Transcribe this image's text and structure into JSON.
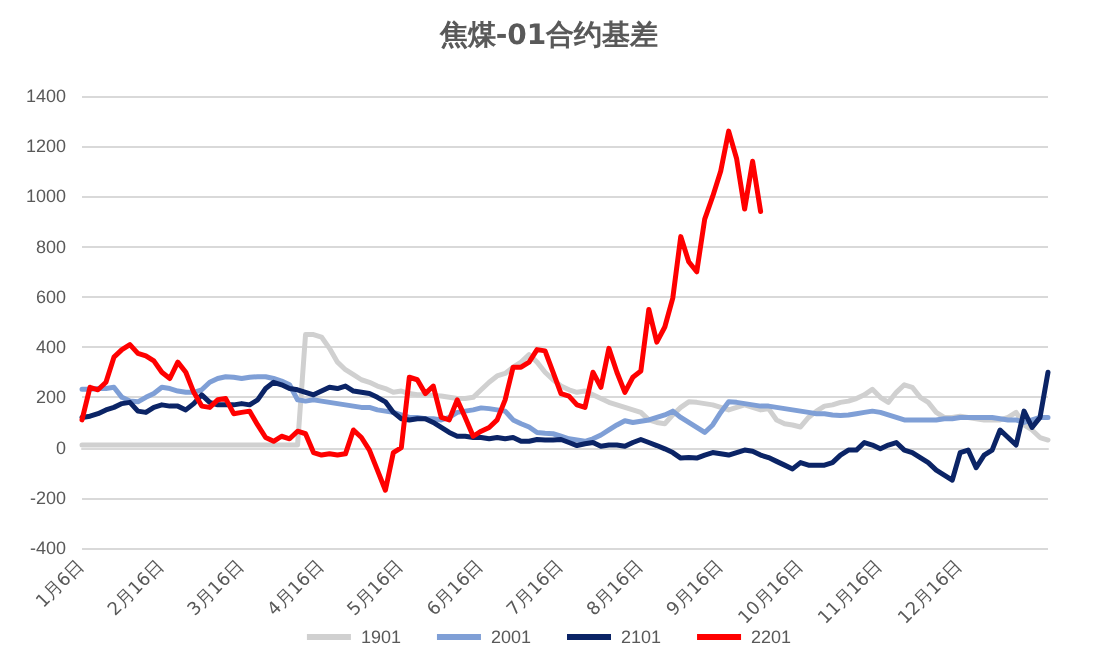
{
  "chart_data": {
    "type": "line",
    "title": "焦煤-01合约基差",
    "categories": [
      "1月6日",
      null,
      null,
      null,
      null,
      null,
      null,
      null,
      null,
      null,
      "2月16日",
      null,
      null,
      null,
      null,
      null,
      null,
      null,
      null,
      null,
      "3月16日",
      null,
      null,
      null,
      null,
      null,
      null,
      null,
      null,
      null,
      "4月16日",
      null,
      null,
      null,
      null,
      null,
      null,
      null,
      null,
      null,
      "5月16日",
      null,
      null,
      null,
      null,
      null,
      null,
      null,
      null,
      null,
      "6月16日",
      null,
      null,
      null,
      null,
      null,
      null,
      null,
      null,
      null,
      "7月16日",
      null,
      null,
      null,
      null,
      null,
      null,
      null,
      null,
      null,
      "8月16日",
      null,
      null,
      null,
      null,
      null,
      null,
      null,
      null,
      null,
      "9月16日",
      null,
      null,
      null,
      null,
      null,
      null,
      null,
      null,
      null,
      "10月16日",
      null,
      null,
      null,
      null,
      null,
      null,
      null,
      null,
      null,
      "11月16日",
      null,
      null,
      null,
      null,
      null,
      null,
      null,
      null,
      null,
      "12月16日",
      null,
      null,
      null,
      null,
      null,
      null,
      null,
      null,
      null,
      null,
      null
    ],
    "series": [
      {
        "name": "1901",
        "color": "#d0d0d0",
        "values": [
          10,
          10,
          10,
          10,
          10,
          10,
          10,
          10,
          10,
          10,
          10,
          10,
          10,
          10,
          10,
          10,
          10,
          10,
          10,
          10,
          10,
          10,
          10,
          10,
          10,
          10,
          10,
          10,
          450,
          450,
          440,
          395,
          340,
          310,
          290,
          270,
          260,
          245,
          235,
          220,
          225,
          215,
          210,
          210,
          207,
          205,
          200,
          195,
          195,
          200,
          230,
          260,
          285,
          295,
          320,
          340,
          370,
          340,
          300,
          270,
          245,
          230,
          220,
          225,
          210,
          195,
          180,
          170,
          160,
          150,
          140,
          110,
          100,
          95,
          130,
          160,
          182,
          180,
          175,
          170,
          160,
          150,
          160,
          170,
          160,
          150,
          155,
          110,
          95,
          90,
          82,
          120,
          145,
          165,
          170,
          180,
          185,
          195,
          210,
          232,
          200,
          180,
          220,
          250,
          240,
          200,
          180,
          140,
          120,
          120,
          125,
          120,
          115,
          110,
          110,
          110,
          120,
          140,
          90,
          70,
          40,
          30
        ]
      },
      {
        "name": "2001",
        "color": "#7f9fd6",
        "values": [
          232,
          232,
          235,
          235,
          240,
          200,
          185,
          182,
          200,
          215,
          240,
          235,
          225,
          220,
          220,
          230,
          260,
          275,
          282,
          280,
          275,
          280,
          282,
          282,
          275,
          265,
          250,
          190,
          185,
          190,
          185,
          180,
          175,
          170,
          165,
          160,
          160,
          150,
          145,
          140,
          130,
          120,
          120,
          115,
          115,
          110,
          120,
          140,
          145,
          150,
          158,
          155,
          150,
          145,
          110,
          95,
          82,
          60,
          57,
          55,
          45,
          35,
          30,
          25,
          35,
          50,
          70,
          90,
          107,
          100,
          105,
          110,
          120,
          130,
          145,
          120,
          100,
          80,
          60,
          90,
          140,
          182,
          180,
          175,
          170,
          165,
          165,
          160,
          155,
          150,
          145,
          140,
          135,
          135,
          130,
          128,
          130,
          135,
          140,
          145,
          140,
          130,
          120,
          110,
          110,
          110,
          110,
          110,
          115,
          115,
          120,
          120,
          120,
          120,
          120,
          115,
          110,
          110,
          100,
          110,
          120,
          120
        ]
      },
      {
        "name": "2101",
        "color": "#0b2466",
        "values": [
          120,
          125,
          135,
          150,
          160,
          175,
          180,
          145,
          140,
          160,
          170,
          165,
          165,
          150,
          175,
          210,
          180,
          170,
          170,
          170,
          175,
          170,
          190,
          235,
          260,
          250,
          235,
          230,
          220,
          210,
          225,
          240,
          235,
          245,
          225,
          220,
          215,
          200,
          182,
          140,
          115,
          110,
          115,
          115,
          100,
          80,
          60,
          45,
          45,
          40,
          40,
          35,
          40,
          35,
          40,
          25,
          25,
          32,
          30,
          30,
          32,
          20,
          8,
          15,
          20,
          5,
          10,
          10,
          5,
          20,
          32,
          20,
          8,
          -5,
          -20,
          -42,
          -40,
          -42,
          -30,
          -20,
          -25,
          -30,
          -20,
          -10,
          -15,
          -30,
          -40,
          -55,
          -70,
          -85,
          -60,
          -70,
          -70,
          -70,
          -60,
          -30,
          -10,
          -10,
          20,
          10,
          -5,
          10,
          20,
          -10,
          -20,
          -40,
          -60,
          -90,
          -110,
          -130,
          -20,
          -10,
          -80,
          -30,
          -10,
          70,
          40,
          10,
          145,
          80,
          120,
          300
        ]
      },
      {
        "name": "2201",
        "color": "#ff0000",
        "values": [
          110,
          240,
          230,
          260,
          360,
          390,
          410,
          375,
          365,
          345,
          300,
          275,
          340,
          300,
          220,
          165,
          160,
          190,
          195,
          135,
          140,
          145,
          90,
          40,
          25,
          45,
          35,
          65,
          55,
          -20,
          -30,
          -25,
          -30,
          -25,
          70,
          40,
          -10,
          -90,
          -170,
          -20,
          0,
          280,
          270,
          215,
          245,
          120,
          110,
          190,
          120,
          45,
          65,
          80,
          110,
          190,
          320,
          320,
          340,
          390,
          385,
          300,
          215,
          205,
          170,
          160,
          300,
          240,
          395,
          300,
          220,
          280,
          305,
          550,
          420,
          480,
          595,
          840,
          740,
          700,
          910,
          1000,
          1100,
          1260,
          1150,
          950,
          1140,
          940,
          null,
          null,
          null,
          null,
          null,
          null,
          null,
          null,
          null,
          null,
          null,
          null,
          null,
          null,
          null,
          null,
          null,
          null,
          null,
          null,
          null,
          null,
          null,
          null,
          null,
          null,
          null,
          null,
          null,
          null,
          null,
          null,
          null,
          null,
          null,
          null
        ]
      }
    ],
    "ylim": [
      -400,
      1400
    ],
    "yticks": [
      -400,
      -200,
      0,
      200,
      400,
      600,
      800,
      1000,
      1200,
      1400
    ],
    "grid": "y",
    "legend": "bottom",
    "marker": "none",
    "line_style": "solid"
  }
}
